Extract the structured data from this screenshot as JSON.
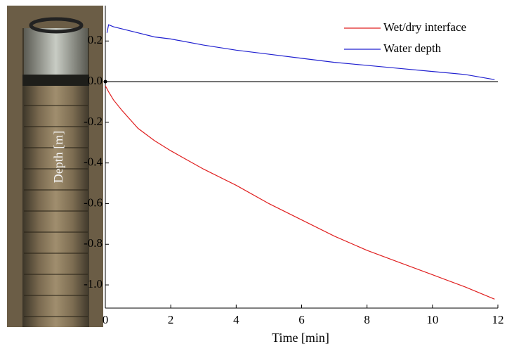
{
  "chart_data": {
    "type": "line",
    "ylabel": "Depth [m]",
    "xlabel": "Time [min]",
    "x": [
      0,
      0.05,
      0.1,
      0.25,
      0.5,
      1,
      1.5,
      2,
      3,
      4,
      5,
      6,
      7,
      8,
      9,
      10,
      11,
      11.9
    ],
    "series": [
      {
        "name": "Wet/dry interface",
        "color": "#e02020",
        "values": [
          -0.02,
          -0.035,
          -0.05,
          -0.09,
          -0.14,
          -0.23,
          -0.29,
          -0.34,
          -0.43,
          -0.51,
          -0.6,
          -0.68,
          -0.76,
          -0.83,
          -0.89,
          -0.95,
          -1.01,
          -1.07
        ]
      },
      {
        "name": "Water depth",
        "color": "#2020d0",
        "values": [
          null,
          0.24,
          0.28,
          0.27,
          0.26,
          0.24,
          0.22,
          0.21,
          0.18,
          0.155,
          0.135,
          0.115,
          0.095,
          0.08,
          0.065,
          0.05,
          0.035,
          0.01
        ]
      }
    ],
    "xlim": [
      0,
      12
    ],
    "xticks": [
      0,
      2,
      4,
      6,
      8,
      10,
      12
    ],
    "ylim": [
      -1.114,
      0.374
    ],
    "yticks": [
      0.2,
      {
        "value": 0,
        "label": "0.0"
      },
      -0.2,
      -0.4,
      -0.6,
      -0.8,
      {
        "value": -1,
        "label": "-1.0"
      }
    ],
    "legend": "upper right"
  }
}
